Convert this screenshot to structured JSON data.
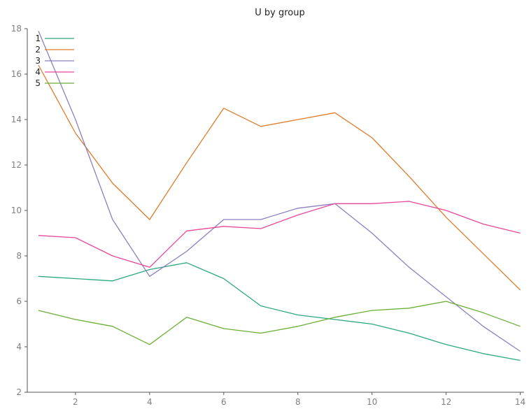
{
  "chart_data": {
    "type": "line",
    "title": "U by group",
    "xlabel": "",
    "ylabel": "",
    "xlim": [
      0.7,
      14.1
    ],
    "ylim": [
      2,
      18
    ],
    "x_ticks": [
      2,
      4,
      6,
      8,
      10,
      12,
      14
    ],
    "y_ticks": [
      2,
      4,
      6,
      8,
      10,
      12,
      14,
      16,
      18
    ],
    "legend_position": "top-left",
    "grid": false,
    "x": [
      1,
      2,
      3,
      4,
      5,
      6,
      7,
      8,
      9,
      10,
      11,
      12,
      13,
      14
    ],
    "series": [
      {
        "name": "1",
        "color": "#2ca87f",
        "values": [
          7.1,
          7.0,
          6.9,
          7.4,
          7.7,
          7.0,
          5.8,
          5.4,
          5.2,
          5.0,
          4.6,
          4.1,
          3.7,
          3.4
        ]
      },
      {
        "name": "2",
        "color": "#e07b2a",
        "values": [
          16.4,
          13.4,
          11.2,
          9.6,
          12.1,
          14.5,
          13.7,
          14.0,
          14.3,
          13.2,
          11.5,
          9.7,
          8.1,
          6.5
        ]
      },
      {
        "name": "3",
        "color": "#8c7fc0",
        "values": [
          17.9,
          14.0,
          9.6,
          7.1,
          8.2,
          9.6,
          9.6,
          10.1,
          10.3,
          9.0,
          7.5,
          6.2,
          4.9,
          3.8
        ]
      },
      {
        "name": "4",
        "color": "#e8479a",
        "values": [
          8.9,
          8.8,
          8.0,
          7.5,
          9.1,
          9.3,
          9.2,
          9.8,
          10.3,
          10.3,
          10.4,
          10.0,
          9.4,
          9.0
        ]
      },
      {
        "name": "5",
        "color": "#6aaf35",
        "values": [
          5.6,
          5.2,
          4.9,
          4.1,
          5.3,
          4.8,
          4.6,
          4.9,
          5.3,
          5.6,
          5.7,
          6.0,
          5.5,
          4.9
        ]
      }
    ]
  }
}
